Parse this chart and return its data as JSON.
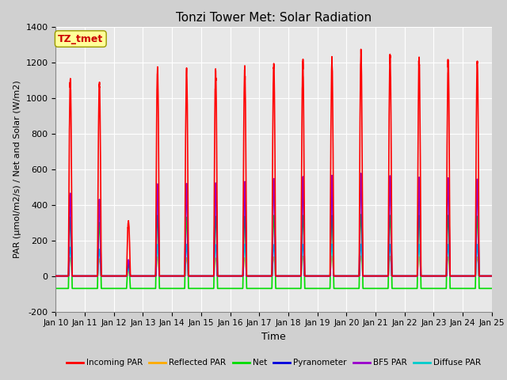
{
  "title": "Tonzi Tower Met: Solar Radiation",
  "xlabel": "Time",
  "ylabel": "PAR (μmol/m2/s) / Net and Solar (W/m2)",
  "ylim": [
    -200,
    1400
  ],
  "n_days": 15,
  "xtick_labels": [
    "Jan 10",
    "Jan 11",
    "Jan 12",
    "Jan 13",
    "Jan 14",
    "Jan 15",
    "Jan 16",
    "Jan 17",
    "Jan 18",
    "Jan 19",
    "Jan 20",
    "Jan 21",
    "Jan 22",
    "Jan 23",
    "Jan 24",
    "Jan 25"
  ],
  "annotation_text": "TZ_tmet",
  "annotation_color": "#cc0000",
  "annotation_bg": "#ffff99",
  "fig_bg": "#d0d0d0",
  "plot_bg": "#e8e8e8",
  "peak_incoming": [
    1100,
    1090,
    310,
    1160,
    1150,
    1160,
    1160,
    1190,
    1200,
    1200,
    1250,
    1230,
    1210,
    1200,
    1200
  ],
  "peak_pyrano": [
    460,
    430,
    90,
    510,
    510,
    520,
    520,
    545,
    550,
    550,
    565,
    555,
    545,
    545,
    540
  ],
  "peak_bf5": [
    460,
    430,
    90,
    510,
    510,
    520,
    520,
    545,
    550,
    550,
    565,
    555,
    545,
    545,
    540
  ],
  "peak_reflected": [
    100,
    95,
    25,
    105,
    100,
    100,
    100,
    105,
    108,
    108,
    110,
    108,
    105,
    105,
    105
  ],
  "peak_net": [
    330,
    300,
    70,
    340,
    330,
    335,
    335,
    340,
    340,
    340,
    345,
    340,
    340,
    340,
    335
  ],
  "net_night": -70,
  "peak_diffuse": [
    160,
    150,
    40,
    175,
    175,
    175,
    175,
    175,
    175,
    175,
    175,
    175,
    175,
    175,
    175
  ],
  "lines": {
    "incoming_par": {
      "label": "Incoming PAR",
      "color": "#ff0000",
      "lw": 1.2
    },
    "reflected_par": {
      "label": "Reflected PAR",
      "color": "#ffaa00",
      "lw": 1.2
    },
    "net": {
      "label": "Net",
      "color": "#00dd00",
      "lw": 1.2
    },
    "pyranometer": {
      "label": "Pyranometer",
      "color": "#0000dd",
      "lw": 1.2
    },
    "bf5_par": {
      "label": "BF5 PAR",
      "color": "#9900cc",
      "lw": 1.2
    },
    "diffuse_par": {
      "label": "Diffuse PAR",
      "color": "#00cccc",
      "lw": 1.2
    }
  }
}
